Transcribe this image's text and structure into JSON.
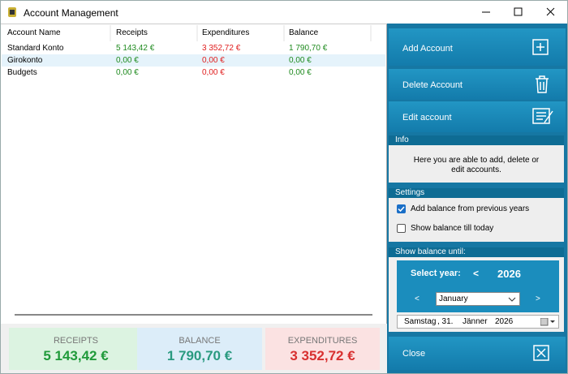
{
  "window": {
    "title": "Account Management"
  },
  "table": {
    "columns": [
      "Account Name",
      "Receipts",
      "Expenditures",
      "Balance"
    ],
    "rows": [
      [
        "Standard Konto",
        "5 143,42 €",
        "3 352,72 €",
        "1 790,70 €"
      ],
      [
        "Girokonto",
        "0,00 €",
        "0,00 €",
        "0,00 €"
      ],
      [
        "Budgets",
        "0,00 €",
        "0,00 €",
        "0,00 €"
      ]
    ]
  },
  "summary": {
    "receipts": {
      "label": "RECEIPTS",
      "value": "5 143,42 €"
    },
    "balance": {
      "label": "BALANCE",
      "value": "1 790,70 €"
    },
    "expenditures": {
      "label": "EXPENDITURES",
      "value": "3 352,72 €"
    }
  },
  "sidebar": {
    "buttons": [
      "Add Account",
      "Delete Account",
      "Edit account"
    ],
    "info": {
      "title": "Info",
      "text": "Here you are able to add, delete or edit accounts."
    },
    "settings": {
      "title": "Settings",
      "options": [
        {
          "label": "Add balance from previous years",
          "checked": true
        },
        {
          "label": "Show balance till today",
          "checked": false
        }
      ]
    },
    "balance_until": {
      "title": "Show balance until:",
      "select_year_label": "Select year:",
      "year_prev": "<",
      "year": "2026",
      "month_prev": "<",
      "month": "January",
      "month_next": ">",
      "date": {
        "weekday": "Samstag",
        "day": ", 31.",
        "month": "Jänner",
        "year": "2026"
      }
    },
    "close": "Close"
  }
}
